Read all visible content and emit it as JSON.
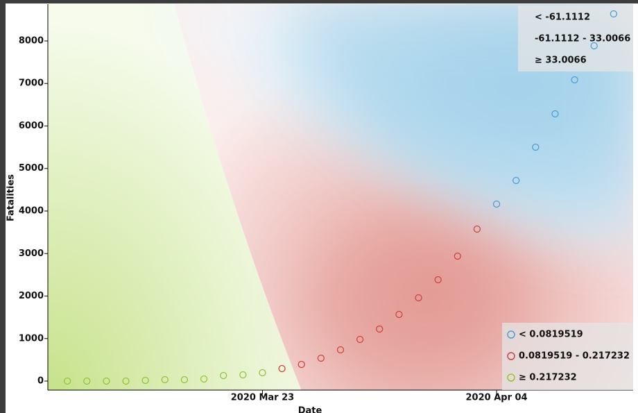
{
  "chart_data": {
    "type": "scatter",
    "x_label": "Date",
    "y_label": "Fatalities",
    "xlim": [
      "2020-03-12",
      "2020-04-11"
    ],
    "ylim": [
      -212,
      8865
    ],
    "xticks": [
      {
        "value": "2020-03-23",
        "label": "2020 Mar 23"
      },
      {
        "value": "2020-04-04",
        "label": "2020 Apr 04"
      }
    ],
    "yticks": [
      0,
      1000,
      2000,
      3000,
      4000,
      5000,
      6000,
      7000,
      8000
    ],
    "background_legend": [
      "< -61.1112",
      "-61.1112 - 33.0066",
      "≥ 33.0066"
    ],
    "series": [
      {
        "name": "< 0.0819519",
        "color": "#4a9fd4",
        "x": [
          "2020-04-04",
          "2020-04-05",
          "2020-04-06",
          "2020-04-07",
          "2020-04-08",
          "2020-04-09",
          "2020-04-10"
        ],
        "values": [
          4163,
          4718,
          5502,
          6286,
          7086,
          7886,
          8637
        ]
      },
      {
        "name": "0.0819519 - 0.217232",
        "color": "#d0433a",
        "x": [
          "2020-03-24",
          "2020-03-25",
          "2020-03-26",
          "2020-03-27",
          "2020-03-28",
          "2020-03-29",
          "2020-03-30",
          "2020-03-31",
          "2020-04-01",
          "2020-04-02",
          "2020-04-03"
        ],
        "values": [
          294,
          392,
          539,
          735,
          980,
          1224,
          1567,
          1959,
          2384,
          2939,
          3576
        ]
      },
      {
        "name": "≥ 0.217232",
        "color": "#93c532",
        "x": [
          "2020-03-13",
          "2020-03-14",
          "2020-03-15",
          "2020-03-16",
          "2020-03-17",
          "2020-03-18",
          "2020-03-19",
          "2020-03-20",
          "2020-03-21",
          "2020-03-22",
          "2020-03-23"
        ],
        "values": [
          0,
          0,
          0,
          0,
          16,
          33,
          33,
          49,
          131,
          147,
          196
        ]
      }
    ]
  }
}
